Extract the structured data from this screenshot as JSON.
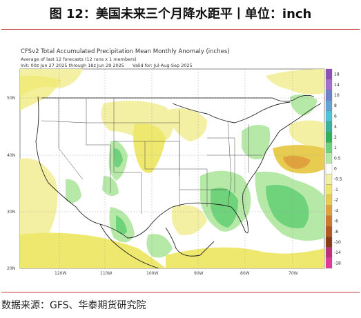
{
  "title": "图 12：美国未来三个月降水距平丨单位：inch",
  "source": "数据来源：GFS、华泰期货研究院",
  "map": {
    "heading1": "CFSv2 Total Accumulated Precipitation Mean Monthly Anomaly (inches)",
    "heading2": "Average of last 12 forecasts (12 runs x 1 members)",
    "heading3_left": "Init: 00z Jun 27 2025 through 18z Jun 29 2025",
    "heading3_right": "Valid for: Jul-Aug-Sep 2025",
    "lat_labels": [
      "50N",
      "40N",
      "30N",
      "20N"
    ],
    "lon_labels": [
      "120W",
      "110W",
      "100W",
      "90W",
      "80W",
      "70W"
    ]
  },
  "legend": {
    "labels": [
      "18",
      "14",
      "10",
      "8",
      "6",
      "4",
      "2",
      "1",
      "0.5",
      "0",
      "-0.5",
      "-1",
      "-2",
      "-4",
      "-6",
      "-8",
      "-10",
      "-14",
      "-18"
    ],
    "colors": [
      "#8c4fb8",
      "#a46fd0",
      "#6a82c9",
      "#5fa3d6",
      "#4cc4d8",
      "#36b39a",
      "#2db35a",
      "#6ed37a",
      "#b6e8a8",
      "#ffffff",
      "#f3f0a3",
      "#efe86e",
      "#e8cc52",
      "#dfa23c",
      "#cf7a2a",
      "#b45a20",
      "#8c3a14",
      "#c0307a",
      "#e23a9a"
    ]
  }
}
